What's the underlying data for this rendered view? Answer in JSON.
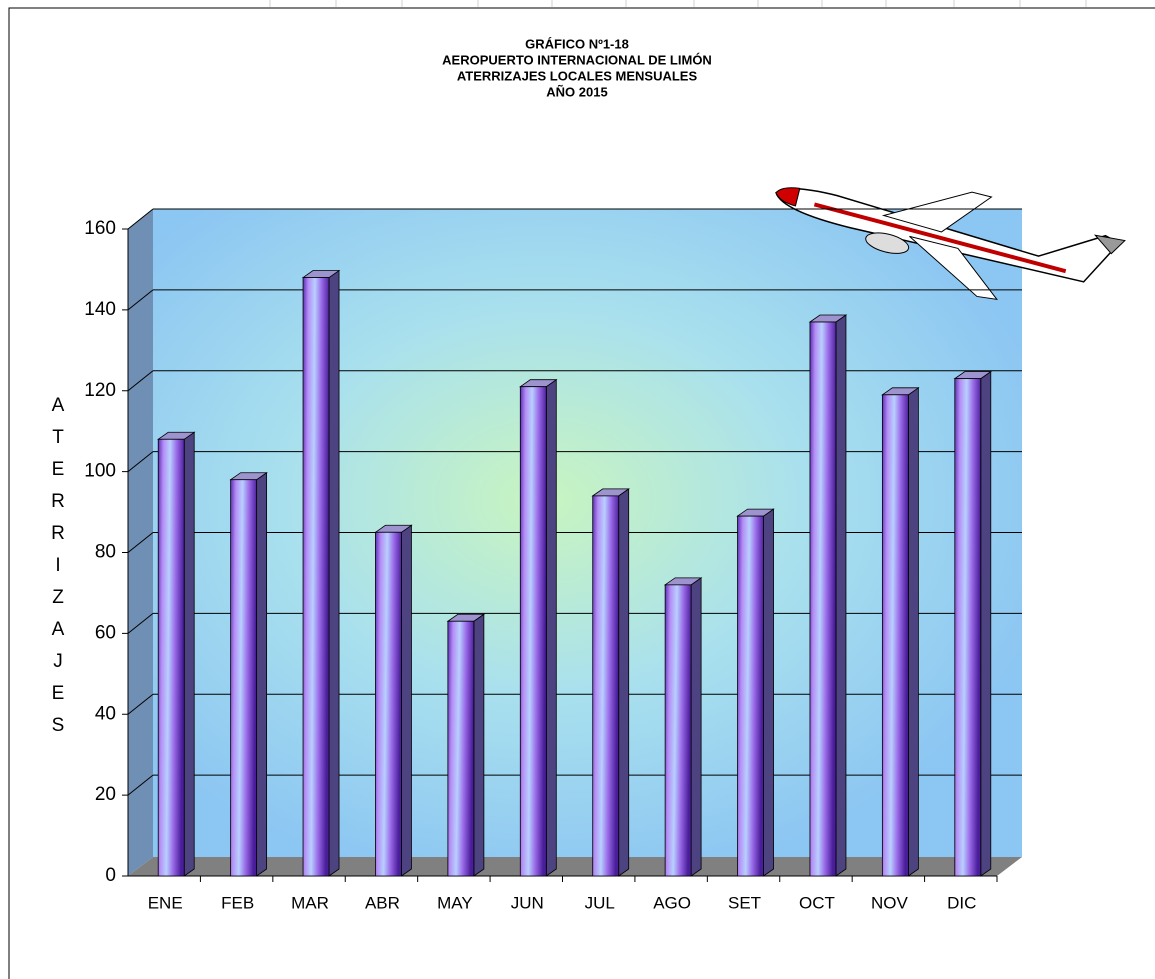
{
  "chart_data": {
    "type": "bar",
    "title": [
      "GRÁFICO Nº1-18",
      "AEROPUERTO  INTERNACIONAL  DE LIMÓN",
      "ATERRIZAJES  LOCALES MENSUALES",
      "AÑO 2015"
    ],
    "y_label": "ATERRIZAJES",
    "categories": [
      "ENE",
      "FEB",
      "MAR",
      "ABR",
      "MAY",
      "JUN",
      "JUL",
      "AGO",
      "SET",
      "OCT",
      "NOV",
      "DIC"
    ],
    "values": [
      108,
      98,
      148,
      85,
      63,
      121,
      94,
      72,
      89,
      137,
      119,
      123
    ],
    "color": "#9b7be0",
    "ylim": [
      0,
      160
    ],
    "yticks": [
      0,
      20,
      40,
      60,
      80,
      100,
      120,
      140,
      160
    ],
    "grid": true
  }
}
